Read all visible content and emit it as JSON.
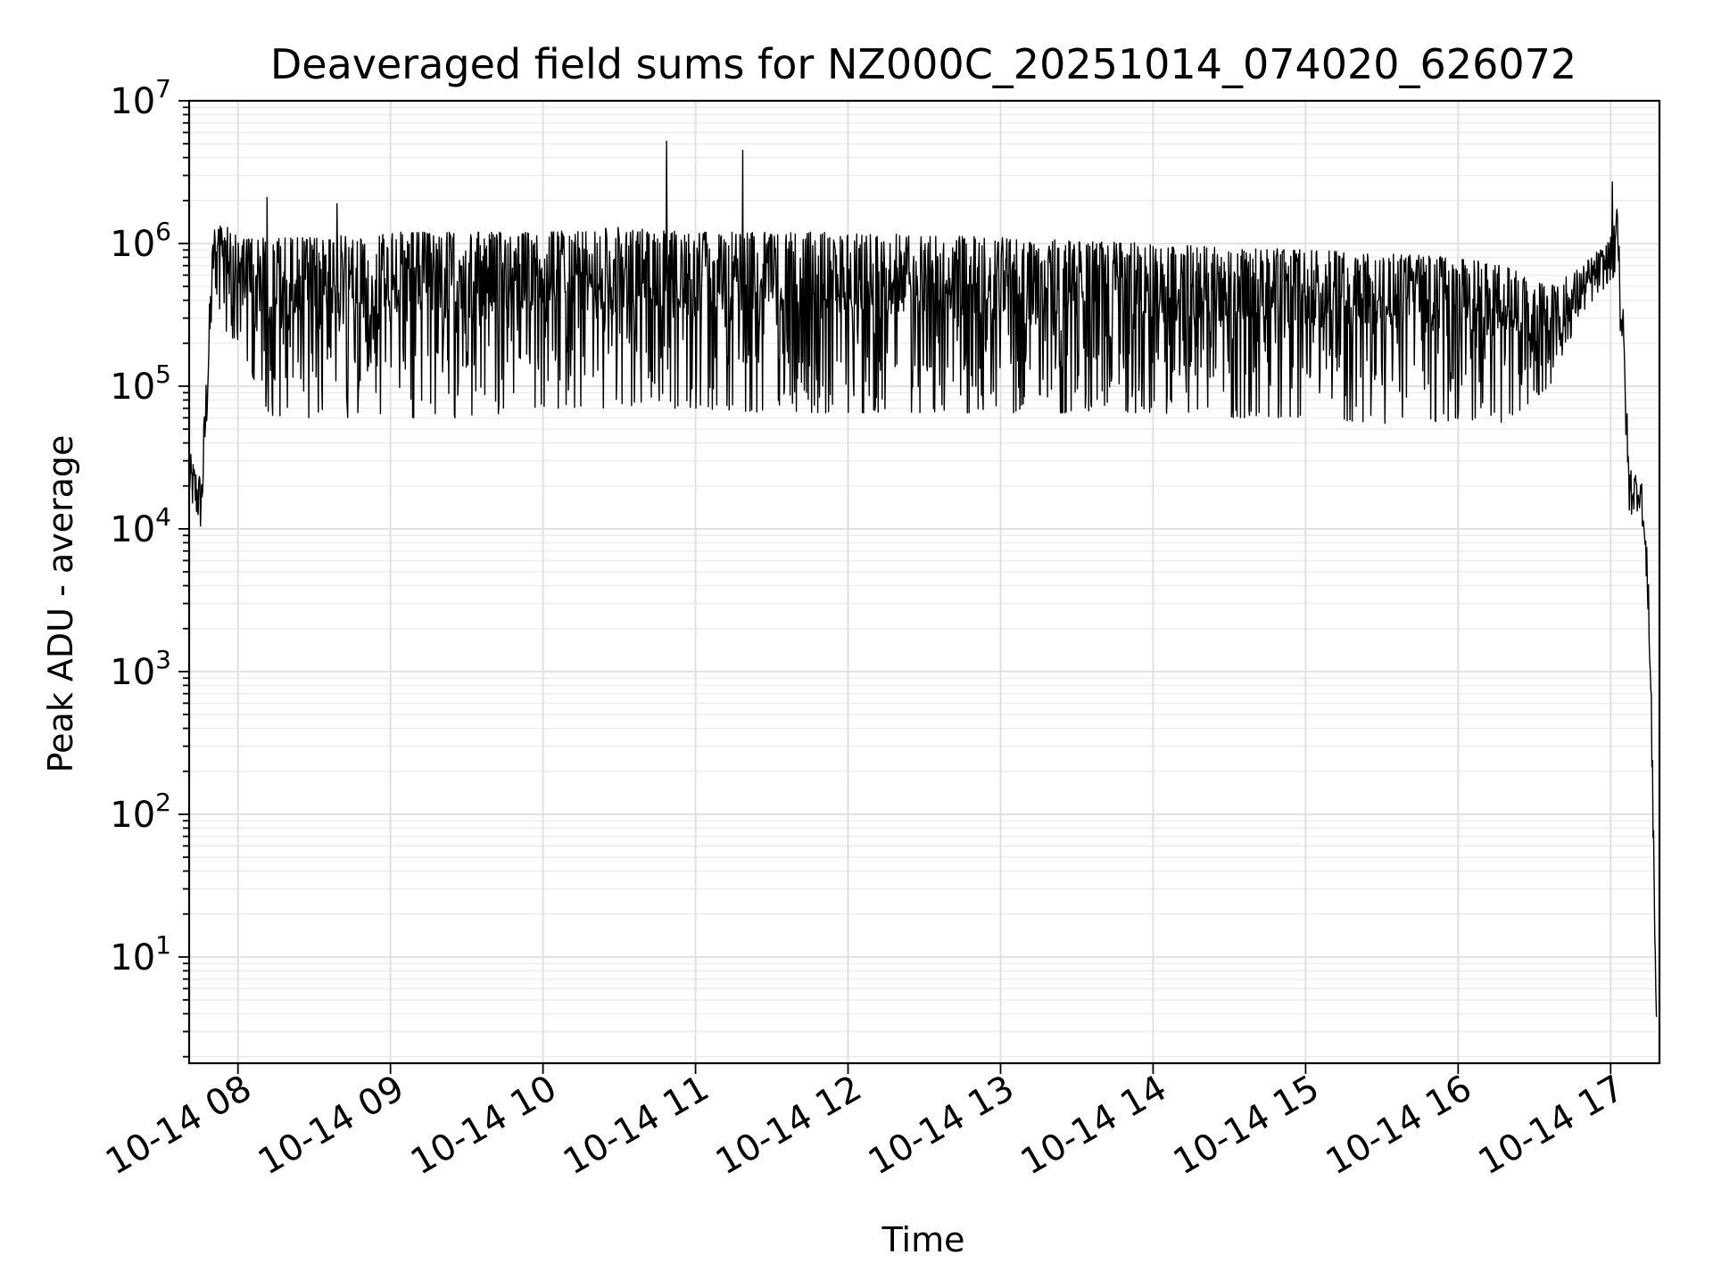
{
  "chart_data": {
    "type": "line",
    "title": "Deaveraged field sums for NZ000C_20251014_074020_626072",
    "xlabel": "Time",
    "ylabel": "Peak ADU - average",
    "yscale": "log",
    "ylim": [
      1.8,
      10000000
    ],
    "xlim_hours": [
      7.68,
      17.32
    ],
    "grid": true,
    "x_ticks": [
      {
        "hour": 8,
        "label": "10-14 08"
      },
      {
        "hour": 9,
        "label": "10-14 09"
      },
      {
        "hour": 10,
        "label": "10-14 10"
      },
      {
        "hour": 11,
        "label": "10-14 11"
      },
      {
        "hour": 12,
        "label": "10-14 12"
      },
      {
        "hour": 13,
        "label": "10-14 13"
      },
      {
        "hour": 14,
        "label": "10-14 14"
      },
      {
        "hour": 15,
        "label": "10-14 15"
      },
      {
        "hour": 16,
        "label": "10-14 16"
      },
      {
        "hour": 17,
        "label": "10-14 17"
      }
    ],
    "y_ticks": [
      {
        "value": 10,
        "base": "10",
        "exp": "1"
      },
      {
        "value": 100,
        "base": "10",
        "exp": "2"
      },
      {
        "value": 1000,
        "base": "10",
        "exp": "3"
      },
      {
        "value": 10000,
        "base": "10",
        "exp": "4"
      },
      {
        "value": 100000,
        "base": "10",
        "exp": "5"
      },
      {
        "value": 1000000,
        "base": "10",
        "exp": "6"
      },
      {
        "value": 10000000,
        "base": "10",
        "exp": "7"
      }
    ],
    "series": [
      {
        "name": "Peak ADU - average",
        "color": "#000000",
        "envelope": [
          {
            "hour": 7.68,
            "low": 15000,
            "high": 35000
          },
          {
            "hour": 7.76,
            "low": 9000,
            "high": 25000
          },
          {
            "hour": 7.8,
            "low": 60000,
            "high": 200000
          },
          {
            "hour": 7.84,
            "low": 500000,
            "high": 1500000
          },
          {
            "hour": 7.9,
            "low": 250000,
            "high": 1400000
          },
          {
            "hour": 8.0,
            "low": 200000,
            "high": 1100000
          },
          {
            "hour": 8.2,
            "low": 60000,
            "high": 1100000
          },
          {
            "hour": 8.5,
            "low": 60000,
            "high": 1100000
          },
          {
            "hour": 9.0,
            "low": 60000,
            "high": 1200000
          },
          {
            "hour": 9.5,
            "low": 60000,
            "high": 1200000
          },
          {
            "hour": 10.0,
            "low": 70000,
            "high": 1200000
          },
          {
            "hour": 10.5,
            "low": 70000,
            "high": 1300000
          },
          {
            "hour": 11.0,
            "low": 70000,
            "high": 1200000
          },
          {
            "hour": 11.5,
            "low": 65000,
            "high": 1200000
          },
          {
            "hour": 12.0,
            "low": 65000,
            "high": 1200000
          },
          {
            "hour": 12.5,
            "low": 65000,
            "high": 1150000
          },
          {
            "hour": 13.0,
            "low": 65000,
            "high": 1100000
          },
          {
            "hour": 13.5,
            "low": 65000,
            "high": 1050000
          },
          {
            "hour": 14.0,
            "low": 65000,
            "high": 1000000
          },
          {
            "hour": 14.5,
            "low": 60000,
            "high": 950000
          },
          {
            "hour": 15.0,
            "low": 60000,
            "high": 900000
          },
          {
            "hour": 15.5,
            "low": 55000,
            "high": 850000
          },
          {
            "hour": 16.0,
            "low": 55000,
            "high": 800000
          },
          {
            "hour": 16.3,
            "low": 55000,
            "high": 700000
          },
          {
            "hour": 16.6,
            "low": 100000,
            "high": 500000
          },
          {
            "hour": 16.8,
            "low": 300000,
            "high": 700000
          },
          {
            "hour": 17.0,
            "low": 550000,
            "high": 1100000
          },
          {
            "hour": 17.03,
            "low": 400000,
            "high": 2700000
          },
          {
            "hour": 17.08,
            "low": 150000,
            "high": 400000
          },
          {
            "hour": 17.12,
            "low": 12000,
            "high": 30000
          },
          {
            "hour": 17.2,
            "low": 14000,
            "high": 24000
          },
          {
            "hour": 17.25,
            "low": 2000,
            "high": 5000
          },
          {
            "hour": 17.27,
            "low": 100,
            "high": 500
          },
          {
            "hour": 17.3,
            "low": 3.8,
            "high": 3.8
          }
        ],
        "spikes": [
          {
            "hour": 8.19,
            "value": 2100000
          },
          {
            "hour": 8.65,
            "value": 1900000
          },
          {
            "hour": 10.81,
            "value": 5200000
          },
          {
            "hour": 11.31,
            "value": 4500000
          },
          {
            "hour": 17.01,
            "value": 2700000
          }
        ]
      }
    ]
  }
}
